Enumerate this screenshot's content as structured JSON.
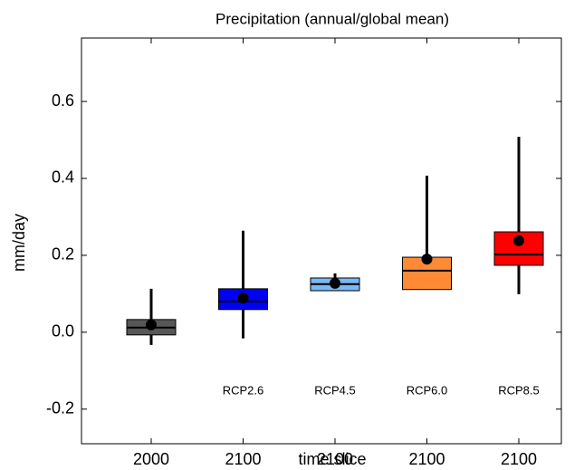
{
  "chart_data": {
    "type": "box",
    "title": "Precipitation (annual/global mean)",
    "xlabel": "time slice",
    "ylabel": "mm/day",
    "categories": [
      "2000",
      "2100",
      "2100",
      "2100",
      "2100"
    ],
    "boxes": [
      {
        "color": "#575757",
        "whisker_low": -0.033,
        "q1": -0.007,
        "median": 0.012,
        "q3": 0.033,
        "whisker_high": 0.113,
        "mean": 0.019
      },
      {
        "color": "#0000f5",
        "label": "RCP2.6",
        "whisker_low": -0.016,
        "q1": 0.059,
        "median": 0.08,
        "q3": 0.113,
        "whisker_high": 0.264,
        "mean": 0.089
      },
      {
        "color": "#7ab8f5",
        "label": "RCP4.5",
        "whisker_low": 0.108,
        "q1": 0.108,
        "median": 0.125,
        "q3": 0.141,
        "whisker_high": 0.153,
        "mean": 0.127
      },
      {
        "color": "#ff8a35",
        "label": "RCP6.0",
        "whisker_low": 0.111,
        "q1": 0.111,
        "median": 0.16,
        "q3": 0.195,
        "whisker_high": 0.407,
        "mean": 0.19
      },
      {
        "color": "#ff0000",
        "label": "RCP8.5",
        "whisker_low": 0.099,
        "q1": 0.174,
        "median": 0.202,
        "q3": 0.261,
        "whisker_high": 0.508,
        "mean": 0.238
      }
    ],
    "ylim": [
      -0.29,
      0.765
    ],
    "yticks": [
      -0.2,
      {
        "value": 0,
        "label": "0.0"
      },
      0.2,
      0.4,
      0.6
    ]
  }
}
